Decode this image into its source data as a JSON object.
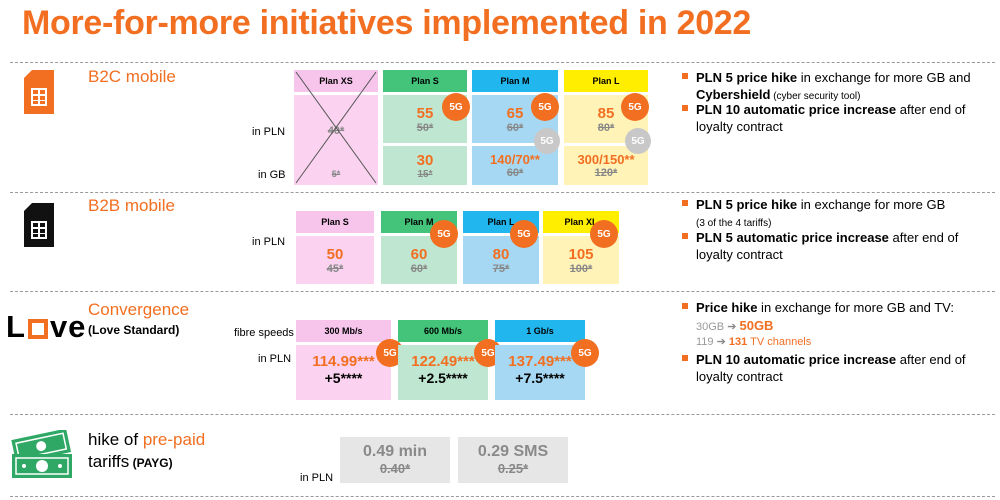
{
  "title": "More-for-more initiatives implemented in 2022",
  "b2c": {
    "title": "B2C mobile",
    "in_pln": "in PLN",
    "in_gb": "in GB",
    "plans": [
      {
        "name": "Plan XS",
        "pln_old": "40*",
        "gb_old": "5*"
      },
      {
        "name": "Plan S",
        "pln_new": "55",
        "pln_old": "50*",
        "gb_new": "30",
        "gb_old": "15*",
        "badge": "5G"
      },
      {
        "name": "Plan M",
        "pln_new": "65",
        "pln_old": "60*",
        "gb_new": "140/70**",
        "gb_old": "60*",
        "badge": "5G",
        "grey_badge": "5G"
      },
      {
        "name": "Plan L",
        "pln_new": "85",
        "pln_old": "80*",
        "gb_new": "300/150**",
        "gb_old": "120*",
        "badge": "5G",
        "grey_badge": "5G"
      }
    ],
    "bullets": [
      {
        "bold": "PLN 5 price hike",
        "rest": " in exchange for more GB and ",
        "bold2": "Cybershield",
        "small": " (cyber security tool)"
      },
      {
        "bold": "PLN 10 automatic price increase",
        "rest": " after end of loyalty contract"
      }
    ]
  },
  "b2b": {
    "title": "B2B mobile",
    "in_pln": "in PLN",
    "plans": [
      {
        "name": "Plan S",
        "pln_new": "50",
        "pln_old": "45*"
      },
      {
        "name": "Plan M",
        "pln_new": "60",
        "pln_old": "60*",
        "badge": "5G"
      },
      {
        "name": "Plan L",
        "pln_new": "80",
        "pln_old": "75*",
        "badge": "5G"
      },
      {
        "name": "Plan XL",
        "pln_new": "105",
        "pln_old": "100*",
        "badge": "5G"
      }
    ],
    "bullets": [
      {
        "bold": "PLN 5 price hike",
        "rest": " in exchange for more GB",
        "small": "(3 of the 4 tariffs)"
      },
      {
        "bold": "PLN 5 automatic price increase",
        "rest": " after end of loyalty contract"
      }
    ]
  },
  "convergence": {
    "logo_l": "L",
    "logo_ve": "ve",
    "title": "Convergence",
    "subtitle": "(Love Standard)",
    "fibre_label": "fibre speeds",
    "in_pln": "in PLN",
    "plans": [
      {
        "name": "300 Mb/s",
        "price": "114.99***",
        "extra": "+5****",
        "badge": "5G"
      },
      {
        "name": "600 Mb/s",
        "price": "122.49***",
        "extra": "+2.5****",
        "badge": "5G"
      },
      {
        "name": "1 Gb/s",
        "price": "137.49***",
        "extra": "+7.5****",
        "badge": "5G"
      }
    ],
    "bullets": [
      {
        "bold": "Price hike",
        "rest": " in exchange for more GB and TV:"
      },
      {
        "bold": "PLN 10 automatic price increase",
        "rest": " after end of loyalty contract"
      }
    ],
    "gb_from": "30GB",
    "gb_to": "50GB",
    "tv_from": "119",
    "tv_to": "131",
    "tv_suffix": " TV channels"
  },
  "prepaid": {
    "title_a": "hike of ",
    "title_b": "pre-paid",
    "title_c": "tariffs",
    "title_d": " (PAYG)",
    "in_pln": "in PLN",
    "cells": [
      {
        "new": "0.49 min",
        "old": "0.40*"
      },
      {
        "new": "0.29 SMS",
        "old": "0.25*"
      }
    ]
  },
  "colors": {
    "accent": "#f26f21",
    "green": "#2fa866"
  }
}
